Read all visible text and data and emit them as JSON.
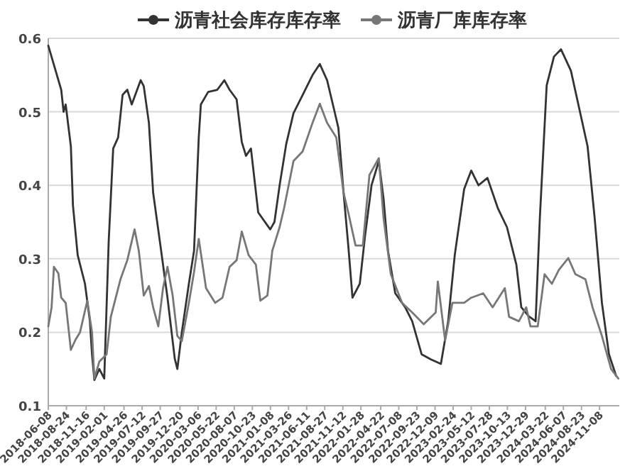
{
  "chart_data": {
    "type": "line",
    "grid": "y",
    "legend": "top",
    "xlim": [
      "2018-06-08",
      "2025-01-31"
    ],
    "xticks": [
      "2018-06-08",
      "2018-08-24",
      "2018-11-16",
      "2019-02-01",
      "2019-04-26",
      "2019-07-12",
      "2019-09-27",
      "2019-12-20",
      "2020-03-06",
      "2020-05-22",
      "2020-08-07",
      "2020-10-23",
      "2021-01-08",
      "2021-03-26",
      "2021-06-11",
      "2021-08-27",
      "2021-11-12",
      "2022-01-28",
      "2022-04-22",
      "2022-07-08",
      "2022-09-23",
      "2022-12-09",
      "2023-02-24",
      "2023-05-12",
      "2023-07-28",
      "2023-10-13",
      "2023-12-29",
      "2024-03-22",
      "2024-06-07",
      "2024-08-23",
      "2024-11-08"
    ],
    "ylim": [
      0.1,
      0.6
    ],
    "yticks": [
      0.1,
      0.2,
      0.3,
      0.4,
      0.5,
      0.6
    ],
    "series": [
      {
        "name": "沥青社会库存库存率",
        "color": "#333333",
        "x": [
          "2018-06-08",
          "2018-08-02",
          "2018-08-12",
          "2018-08-21",
          "2018-09-12",
          "2018-09-21",
          "2018-10-11",
          "2018-11-11",
          "2018-12-02",
          "2018-12-11",
          "2018-12-21",
          "2019-01-11",
          "2019-02-01",
          "2019-02-20",
          "2019-03-11",
          "2019-04-01",
          "2019-04-20",
          "2019-05-10",
          "2019-05-29",
          "2019-07-06",
          "2019-07-19",
          "2019-08-10",
          "2019-08-28",
          "2019-09-28",
          "2019-10-28",
          "2019-11-28",
          "2019-12-09",
          "2019-12-28",
          "2020-01-27",
          "2020-02-18",
          "2020-03-09",
          "2020-03-18",
          "2020-04-18",
          "2020-05-27",
          "2020-06-26",
          "2020-07-18",
          "2020-08-17",
          "2020-09-08",
          "2020-09-26",
          "2020-10-17",
          "2020-11-17",
          "2021-01-07",
          "2021-01-25",
          "2021-02-16",
          "2021-03-16",
          "2021-04-16",
          "2021-05-25",
          "2021-07-06",
          "2021-08-06",
          "2021-09-06",
          "2021-10-05",
          "2021-10-24",
          "2021-11-15",
          "2021-12-05",
          "2021-12-23",
          "2022-01-23",
          "2022-02-14",
          "2022-03-14",
          "2022-04-14",
          "2022-05-04",
          "2022-05-23",
          "2022-06-23",
          "2022-08-04",
          "2022-09-03",
          "2022-10-13",
          "2022-11-22",
          "2023-01-03",
          "2023-02-03",
          "2023-03-03",
          "2023-04-12",
          "2023-05-12",
          "2023-06-12",
          "2023-07-20",
          "2023-09-02",
          "2023-10-11",
          "2023-11-20",
          "2023-12-11",
          "2024-01-11",
          "2024-02-10",
          "2024-02-28",
          "2024-03-28",
          "2024-04-28",
          "2024-05-28",
          "2024-07-09",
          "2024-08-18",
          "2024-09-18",
          "2024-10-18",
          "2024-11-18",
          "2024-12-18",
          "2025-01-17"
        ],
        "values": [
          0.59,
          0.53,
          0.5,
          0.51,
          0.453,
          0.372,
          0.305,
          0.266,
          0.215,
          0.17,
          0.135,
          0.15,
          0.137,
          0.324,
          0.45,
          0.465,
          0.523,
          0.53,
          0.51,
          0.543,
          0.535,
          0.485,
          0.39,
          0.318,
          0.247,
          0.164,
          0.15,
          0.2,
          0.266,
          0.311,
          0.465,
          0.51,
          0.527,
          0.53,
          0.543,
          0.53,
          0.517,
          0.459,
          0.44,
          0.45,
          0.363,
          0.34,
          0.35,
          0.4,
          0.456,
          0.498,
          0.523,
          0.55,
          0.565,
          0.543,
          0.504,
          0.478,
          0.39,
          0.318,
          0.247,
          0.266,
          0.33,
          0.4,
          0.433,
          0.382,
          0.311,
          0.253,
          0.234,
          0.215,
          0.17,
          0.163,
          0.157,
          0.215,
          0.305,
          0.395,
          0.42,
          0.4,
          0.41,
          0.369,
          0.343,
          0.292,
          0.234,
          0.222,
          0.215,
          0.356,
          0.536,
          0.575,
          0.585,
          0.556,
          0.498,
          0.453,
          0.356,
          0.24,
          0.17,
          0.141
        ]
      },
      {
        "name": "沥青厂库库存率",
        "color": "#777777",
        "x": [
          "2018-06-08",
          "2018-06-22",
          "2018-07-02",
          "2018-07-21",
          "2018-08-02",
          "2018-08-21",
          "2018-09-12",
          "2018-10-02",
          "2018-10-21",
          "2018-11-21",
          "2018-12-11",
          "2018-12-21",
          "2019-01-11",
          "2019-02-11",
          "2019-03-01",
          "2019-04-11",
          "2019-05-10",
          "2019-06-10",
          "2019-06-28",
          "2019-07-19",
          "2019-08-10",
          "2019-08-28",
          "2019-09-19",
          "2019-10-09",
          "2019-10-28",
          "2019-11-19",
          "2019-12-09",
          "2019-12-28",
          "2020-01-27",
          "2020-02-18",
          "2020-03-09",
          "2020-04-09",
          "2020-05-18",
          "2020-06-18",
          "2020-07-18",
          "2020-08-17",
          "2020-09-08",
          "2020-10-07",
          "2020-11-07",
          "2020-11-26",
          "2020-12-26",
          "2021-01-16",
          "2021-02-16",
          "2021-03-07",
          "2021-04-16",
          "2021-05-25",
          "2021-07-06",
          "2021-08-06",
          "2021-09-06",
          "2021-10-15",
          "2021-11-15",
          "2021-12-05",
          "2022-01-05",
          "2022-02-05",
          "2022-03-05",
          "2022-04-14",
          "2022-05-04",
          "2022-06-04",
          "2022-07-22",
          "2022-09-03",
          "2022-10-22",
          "2022-12-12",
          "2022-12-21",
          "2023-01-21",
          "2023-02-21",
          "2023-04-12",
          "2023-05-12",
          "2023-07-02",
          "2023-08-11",
          "2023-10-02",
          "2023-10-20",
          "2023-12-01",
          "2024-01-01",
          "2024-01-19",
          "2024-02-19",
          "2024-03-19",
          "2024-04-19",
          "2024-05-19",
          "2024-06-28",
          "2024-07-28",
          "2024-09-09",
          "2024-10-09",
          "2024-11-18",
          "2024-12-27",
          "2025-01-27"
        ],
        "values": [
          0.208,
          0.234,
          0.289,
          0.28,
          0.247,
          0.24,
          0.176,
          0.19,
          0.2,
          0.243,
          0.2,
          0.137,
          0.16,
          0.17,
          0.221,
          0.272,
          0.298,
          0.34,
          0.311,
          0.25,
          0.263,
          0.234,
          0.208,
          0.26,
          0.289,
          0.25,
          0.195,
          0.188,
          0.24,
          0.282,
          0.327,
          0.26,
          0.24,
          0.247,
          0.289,
          0.298,
          0.337,
          0.305,
          0.292,
          0.243,
          0.25,
          0.311,
          0.343,
          0.369,
          0.433,
          0.446,
          0.485,
          0.511,
          0.485,
          0.465,
          0.39,
          0.363,
          0.318,
          0.318,
          0.414,
          0.437,
          0.356,
          0.279,
          0.24,
          0.227,
          0.211,
          0.227,
          0.269,
          0.189,
          0.24,
          0.24,
          0.247,
          0.253,
          0.234,
          0.26,
          0.221,
          0.215,
          0.234,
          0.208,
          0.208,
          0.279,
          0.266,
          0.285,
          0.301,
          0.279,
          0.272,
          0.234,
          0.195,
          0.15,
          0.137
        ]
      }
    ]
  }
}
